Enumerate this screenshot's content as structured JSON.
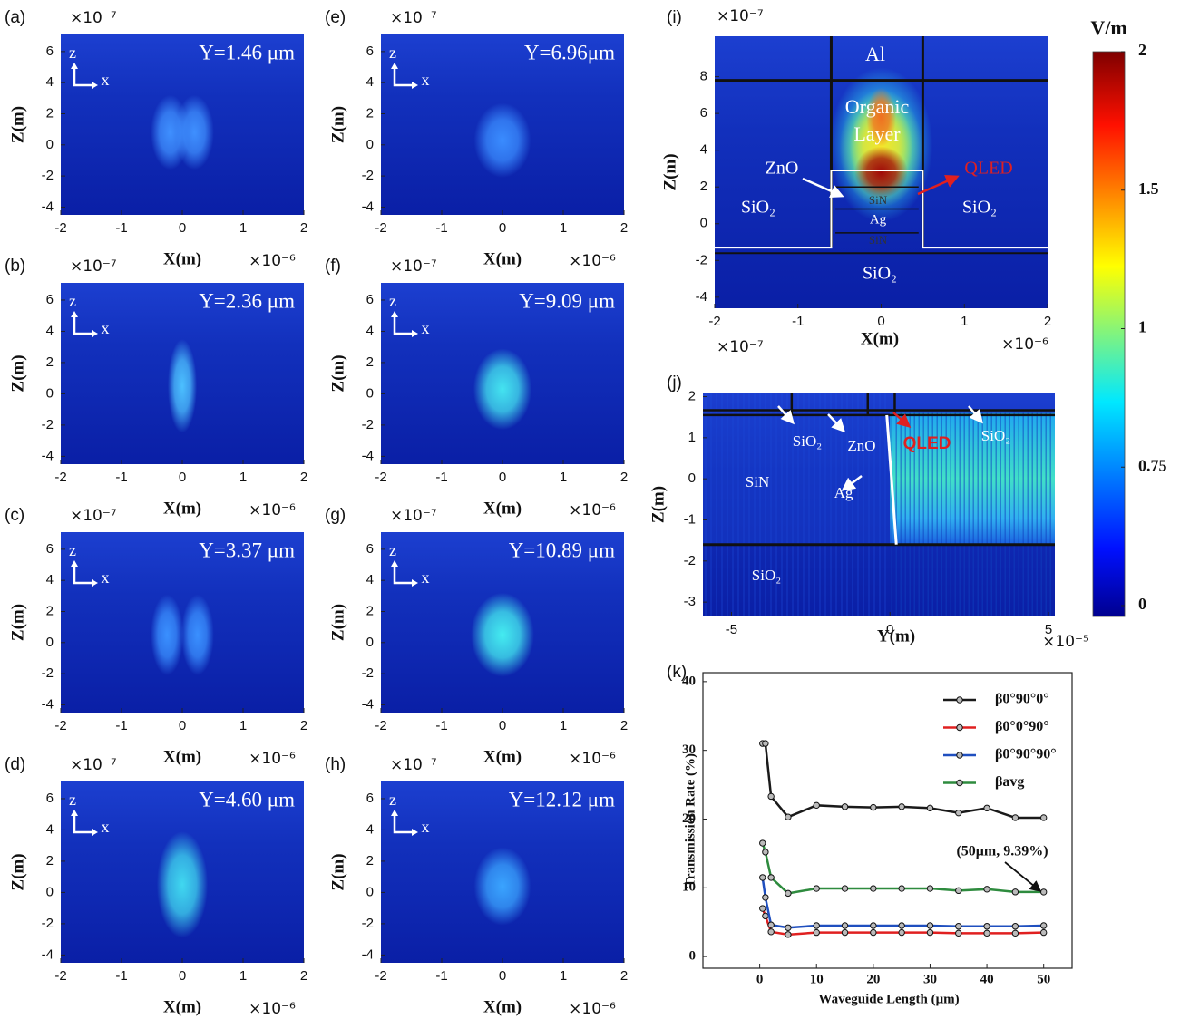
{
  "chart_data": [
    {
      "type": "heatmap",
      "panel": "(a)",
      "annotation": "Y=1.46 μm",
      "frame_labels": [
        "z",
        "x"
      ],
      "xlabel": "X(m)",
      "ylabel": "Z(m)",
      "x_multiplier": "×10⁻⁶",
      "y_multiplier": "×10⁻⁷",
      "xlim": [
        -2,
        2
      ],
      "xticks": [
        -2,
        -1,
        0,
        1,
        2
      ],
      "ylim": [
        -4.5,
        7.1
      ],
      "yticks": [
        -4,
        -2,
        0,
        2,
        4,
        6
      ]
    },
    {
      "type": "heatmap",
      "panel": "(b)",
      "annotation": "Y=2.36 μm",
      "frame_labels": [
        "z",
        "x"
      ],
      "xlabel": "X(m)",
      "ylabel": "Z(m)",
      "x_multiplier": "×10⁻⁶",
      "y_multiplier": "×10⁻⁷",
      "xlim": [
        -2,
        2
      ],
      "xticks": [
        -2,
        -1,
        0,
        1,
        2
      ],
      "ylim": [
        -4.5,
        7.1
      ],
      "yticks": [
        -4,
        -2,
        0,
        2,
        4,
        6
      ]
    },
    {
      "type": "heatmap",
      "panel": "(c)",
      "annotation": "Y=3.37 μm",
      "frame_labels": [
        "z",
        "x"
      ],
      "xlabel": "X(m)",
      "ylabel": "Z(m)",
      "x_multiplier": "×10⁻⁶",
      "y_multiplier": "×10⁻⁷",
      "xlim": [
        -2,
        2
      ],
      "xticks": [
        -2,
        -1,
        0,
        1,
        2
      ],
      "ylim": [
        -4.5,
        7.1
      ],
      "yticks": [
        -4,
        -2,
        0,
        2,
        4,
        6
      ]
    },
    {
      "type": "heatmap",
      "panel": "(d)",
      "annotation": "Y=4.60 μm",
      "frame_labels": [
        "z",
        "x"
      ],
      "xlabel": "X(m)",
      "ylabel": "Z(m)",
      "x_multiplier": "×10⁻⁶",
      "y_multiplier": "×10⁻⁷",
      "xlim": [
        -2,
        2
      ],
      "xticks": [
        -2,
        -1,
        0,
        1,
        2
      ],
      "ylim": [
        -4.5,
        7.1
      ],
      "yticks": [
        -4,
        -2,
        0,
        2,
        4,
        6
      ]
    },
    {
      "type": "heatmap",
      "panel": "(e)",
      "annotation": "Y=6.96μm",
      "frame_labels": [
        "z",
        "x"
      ],
      "xlabel": "X(m)",
      "ylabel": "Z(m)",
      "x_multiplier": "×10⁻⁶",
      "y_multiplier": "×10⁻⁷",
      "xlim": [
        -2,
        2
      ],
      "xticks": [
        -2,
        -1,
        0,
        1,
        2
      ],
      "ylim": [
        -4.5,
        7.1
      ],
      "yticks": [
        -4,
        -2,
        0,
        2,
        4,
        6
      ]
    },
    {
      "type": "heatmap",
      "panel": "(f)",
      "annotation": "Y=9.09 μm",
      "frame_labels": [
        "z",
        "x"
      ],
      "xlabel": "X(m)",
      "ylabel": "Z(m)",
      "x_multiplier": "×10⁻⁶",
      "y_multiplier": "×10⁻⁷",
      "xlim": [
        -2,
        2
      ],
      "xticks": [
        -2,
        -1,
        0,
        1,
        2
      ],
      "ylim": [
        -4.5,
        7.1
      ],
      "yticks": [
        -4,
        -2,
        0,
        2,
        4,
        6
      ]
    },
    {
      "type": "heatmap",
      "panel": "(g)",
      "annotation": "Y=10.89 μm",
      "frame_labels": [
        "z",
        "x"
      ],
      "xlabel": "X(m)",
      "ylabel": "Z(m)",
      "x_multiplier": "×10⁻⁶",
      "y_multiplier": "×10⁻⁷",
      "xlim": [
        -2,
        2
      ],
      "xticks": [
        -2,
        -1,
        0,
        1,
        2
      ],
      "ylim": [
        -4.5,
        7.1
      ],
      "yticks": [
        -4,
        -2,
        0,
        2,
        4,
        6
      ]
    },
    {
      "type": "heatmap",
      "panel": "(h)",
      "annotation": "Y=12.12 μm",
      "frame_labels": [
        "z",
        "x"
      ],
      "xlabel": "X(m)",
      "ylabel": "Z(m)",
      "x_multiplier": "×10⁻⁶",
      "y_multiplier": "×10⁻⁷",
      "xlim": [
        -2,
        2
      ],
      "xticks": [
        -2,
        -1,
        0,
        1,
        2
      ],
      "ylim": [
        -4.5,
        7.1
      ],
      "yticks": [
        -4,
        -2,
        0,
        2,
        4,
        6
      ]
    },
    {
      "type": "heatmap",
      "panel": "(i)",
      "annotations": [
        "Al",
        "Organic",
        "Layer",
        "ZnO",
        "QLED",
        "SiN",
        "Ag",
        "SiN",
        "SiO₂",
        "SiO₂",
        "SiO₂"
      ],
      "xlabel": "X(m)",
      "ylabel": "Z(m)",
      "x_multiplier": "×10⁻⁶",
      "y_multiplier": "×10⁻⁷",
      "xlim": [
        -2,
        2
      ],
      "xticks": [
        -2,
        -1,
        0,
        1,
        2
      ],
      "ylim": [
        -4.6,
        10.2
      ],
      "yticks": [
        -4,
        -2,
        0,
        2,
        4,
        6,
        8
      ]
    },
    {
      "type": "heatmap",
      "panel": "(j)",
      "annotations": [
        "SiO₂",
        "ZnO",
        "QLED",
        "SiO₂",
        "SiN",
        "Ag",
        "SiO₂"
      ],
      "xlabel": "Y(m)",
      "ylabel": "Z(m)",
      "x_multiplier": "×10⁻⁵",
      "y_multiplier": "×10⁻⁷",
      "xlim": [
        -5.9,
        5.2
      ],
      "xticks": [
        -5,
        0,
        5
      ],
      "ylim": [
        -3.35,
        2.1
      ],
      "yticks": [
        -3,
        -2,
        -1,
        0,
        1,
        2
      ]
    },
    {
      "type": "colorbar",
      "title": "V/m",
      "ylim": [
        0,
        2
      ],
      "yticks": [
        0,
        0.75,
        1,
        1.5,
        2
      ]
    },
    {
      "type": "line",
      "panel": "(k)",
      "xlabel": "Waveguide Length (μm)",
      "ylabel": "Transmission Rate (%)",
      "annotation": "(50μm, 9.39%)",
      "x": [
        0.5,
        1,
        2,
        5,
        10,
        15,
        20,
        25,
        30,
        35,
        40,
        45,
        50
      ],
      "series": [
        {
          "name": "β0°90°0°",
          "color": "#1a1a1a",
          "values": [
            31,
            31,
            23.3,
            20.3,
            22,
            21.8,
            21.7,
            21.8,
            21.6,
            20.9,
            21.6,
            20.2,
            20.2
          ]
        },
        {
          "name": "β0°0°90°",
          "color": "#e02020",
          "values": [
            7,
            5.9,
            3.6,
            3.2,
            3.5,
            3.5,
            3.5,
            3.5,
            3.5,
            3.4,
            3.4,
            3.4,
            3.5
          ]
        },
        {
          "name": "β0°90°90°",
          "color": "#1f4fbf",
          "values": [
            11.5,
            8.6,
            4.6,
            4.2,
            4.5,
            4.5,
            4.5,
            4.5,
            4.5,
            4.4,
            4.4,
            4.4,
            4.5
          ]
        },
        {
          "name": "βavg",
          "color": "#2e8b3e",
          "values": [
            16.5,
            15.2,
            11.5,
            9.2,
            9.9,
            9.9,
            9.9,
            9.9,
            9.9,
            9.6,
            9.8,
            9.4,
            9.39
          ]
        }
      ],
      "xlim": [
        -10,
        55
      ],
      "xticks": [
        0,
        10,
        20,
        30,
        40,
        50
      ],
      "ylim": [
        -1.7,
        41.3
      ],
      "yticks": [
        0,
        10,
        20,
        30,
        40
      ]
    }
  ]
}
